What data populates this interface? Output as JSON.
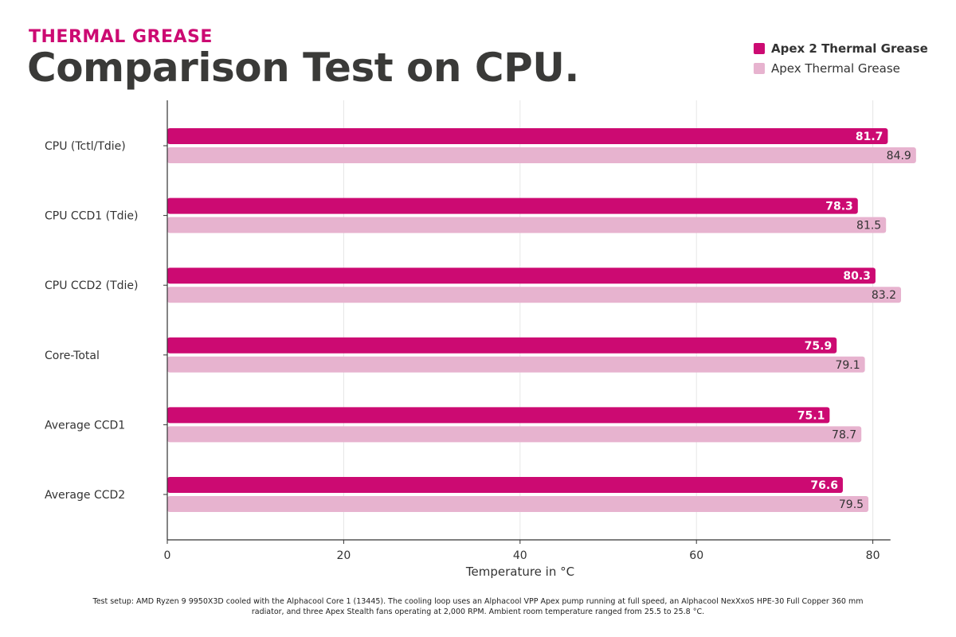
{
  "header": {
    "kicker": "THERMAL GREASE",
    "title": "Comparison Test on CPU."
  },
  "footnote": "Test setup: AMD Ryzen 9 9950X3D cooled with the Alphacool Core 1 (13445). The cooling loop uses an Alphacool VPP Apex pump running at full speed, an Alphacool NexXxoS HPE-30 Full Copper 360 mm radiator, and three Apex Stealth fans operating at 2,000 RPM. Ambient room temperature ranged from 25.5 to 25.8 °C.",
  "chart_data": {
    "type": "bar",
    "orientation": "horizontal",
    "categories": [
      "CPU (Tctl/Tdie)",
      "CPU CCD1 (Tdie)",
      "CPU CCD2 (Tdie)",
      "Core-Total",
      "Average CCD1",
      "Average CCD2"
    ],
    "series": [
      {
        "name": "Apex 2 Thermal Grease",
        "color": "#cc0a72",
        "values": [
          81.7,
          78.3,
          80.3,
          75.9,
          75.1,
          76.6
        ]
      },
      {
        "name": "Apex Thermal Grease",
        "color": "#e7b3cf",
        "values": [
          84.9,
          81.5,
          83.2,
          79.1,
          78.7,
          79.5
        ]
      }
    ],
    "xlabel": "Temperature in °C",
    "ylabel": "",
    "xlim": [
      0,
      82
    ],
    "xticks": [
      0,
      20,
      40,
      60,
      80
    ],
    "grid": "vertical",
    "legend": "top-right",
    "data_labels": true
  }
}
